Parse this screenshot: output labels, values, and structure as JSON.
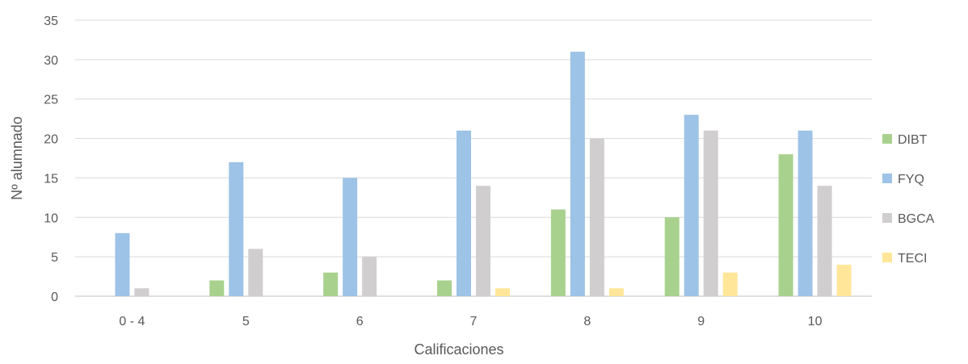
{
  "chart_data": {
    "type": "bar",
    "xlabel": "Calificaciones",
    "ylabel": "Nº alumnado",
    "ylim": [
      0,
      35
    ],
    "yticks": [
      0,
      5,
      10,
      15,
      20,
      25,
      30,
      35
    ],
    "grid": true,
    "legend_position": "right",
    "categories": [
      "0 - 4",
      "5",
      "6",
      "7",
      "8",
      "9",
      "10"
    ],
    "series": [
      {
        "name": "DIBT",
        "color": "#a9d18e",
        "values": [
          0,
          2,
          3,
          2,
          11,
          10,
          18
        ]
      },
      {
        "name": "FYQ",
        "color": "#9dc3e6",
        "values": [
          8,
          17,
          15,
          21,
          31,
          23,
          21
        ]
      },
      {
        "name": "BGCA",
        "color": "#d0cece",
        "values": [
          1,
          6,
          5,
          14,
          20,
          21,
          14
        ]
      },
      {
        "name": "TECI",
        "color": "#ffe699",
        "values": [
          0,
          0,
          0,
          1,
          1,
          3,
          4
        ]
      }
    ]
  }
}
